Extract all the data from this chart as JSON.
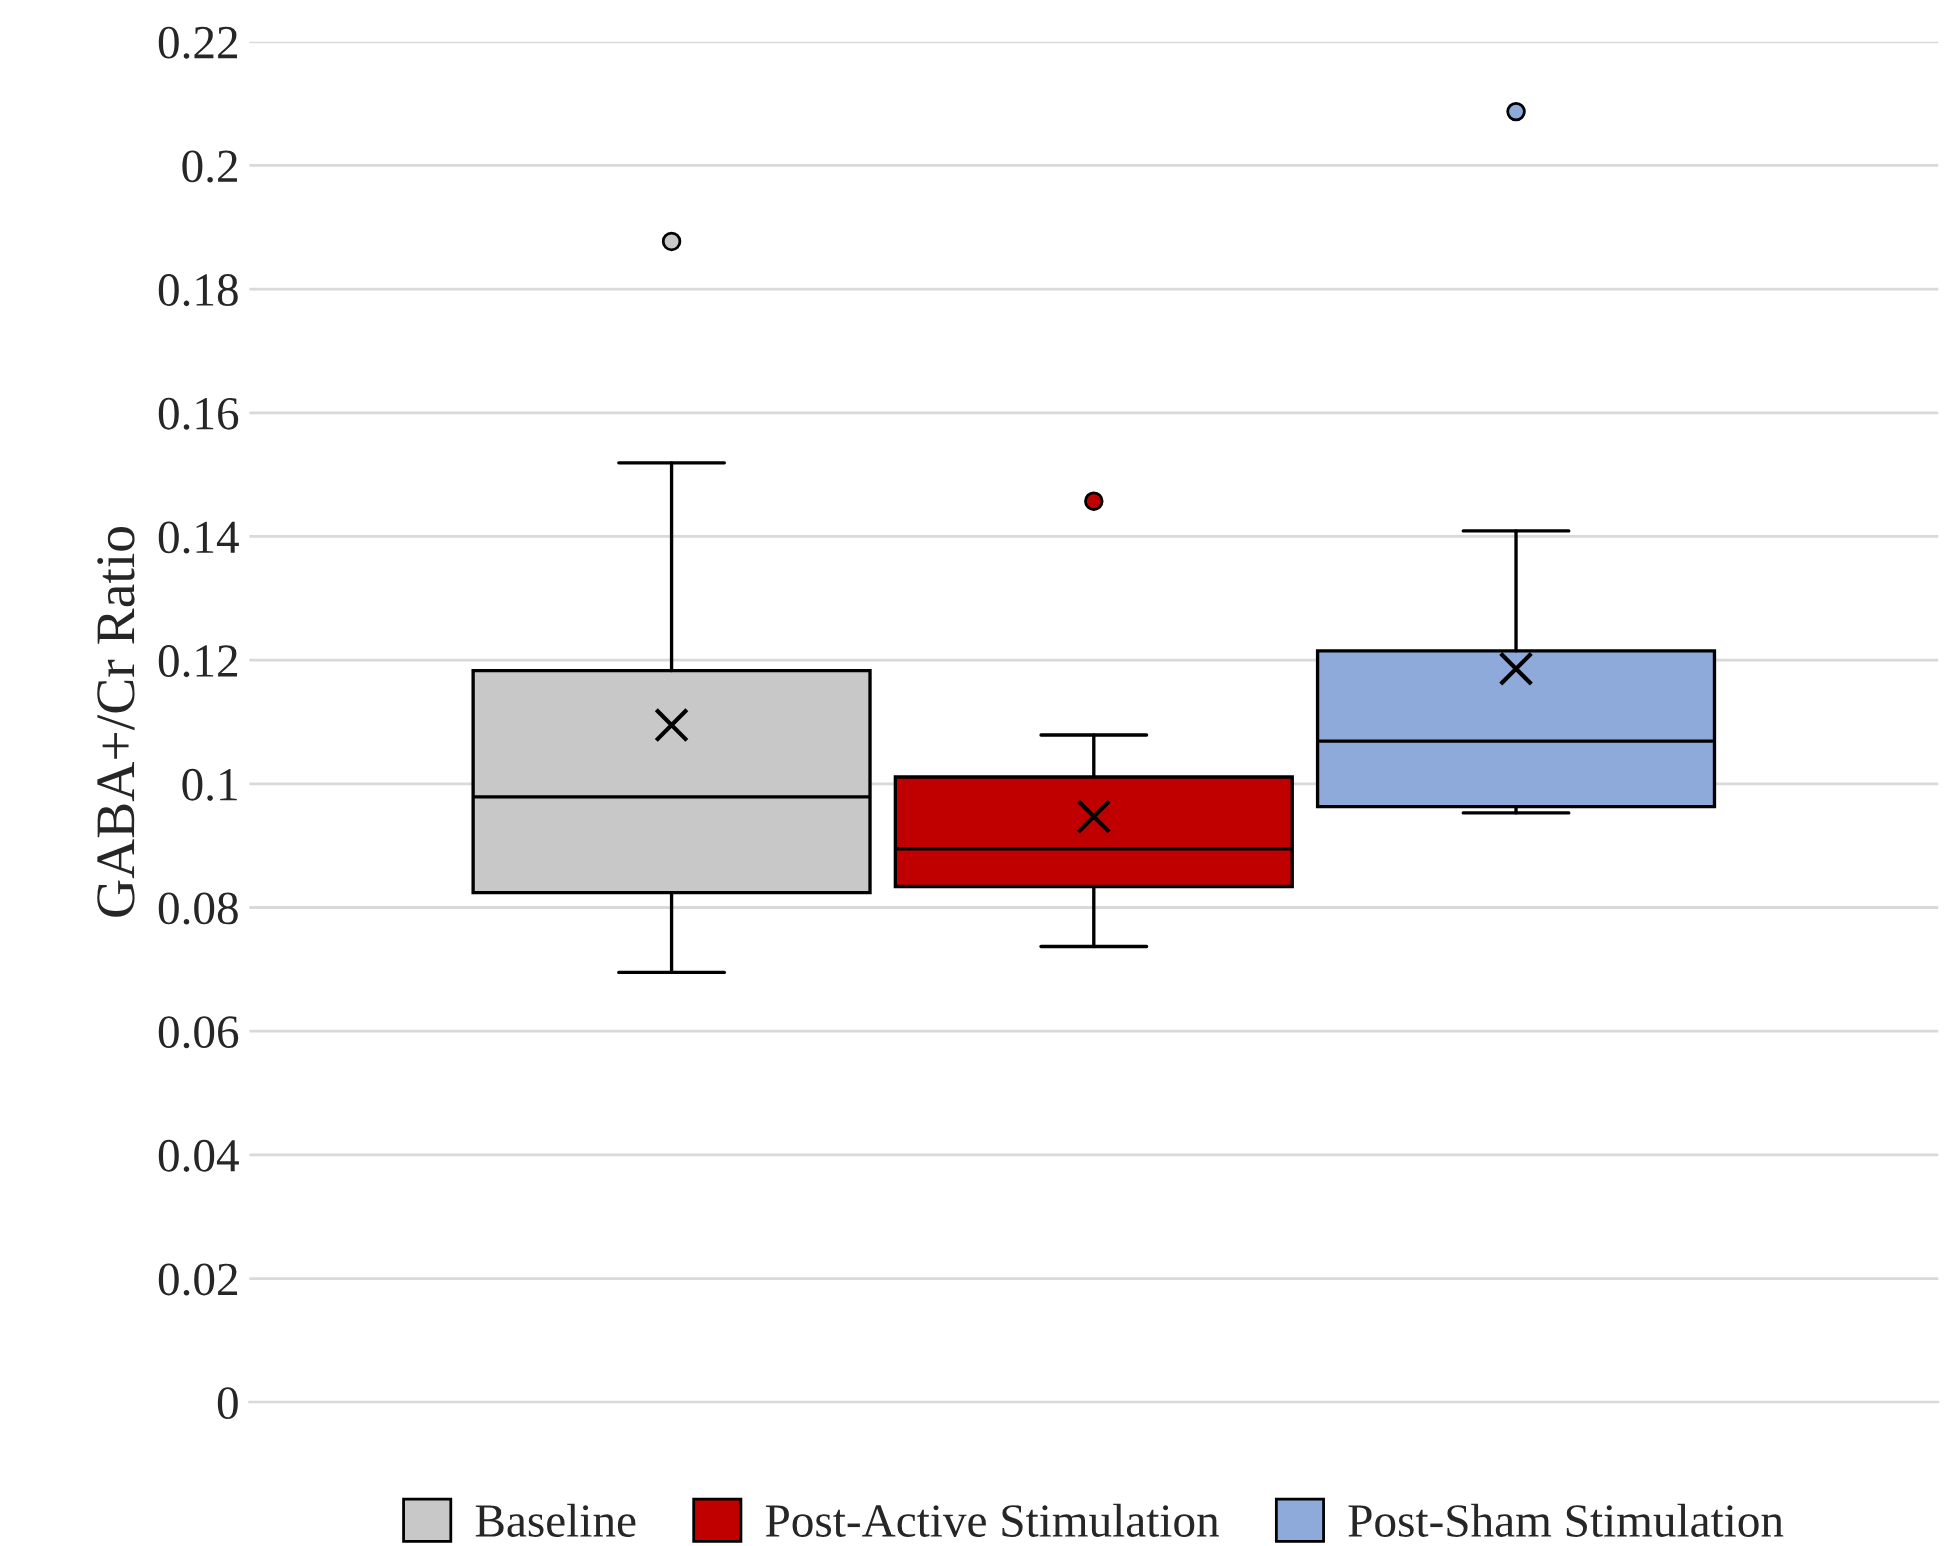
{
  "chart_data": {
    "type": "box",
    "ylabel": "GABA+/Cr Ratio",
    "categories": [
      null
    ],
    "ylim": [
      0,
      0.22
    ],
    "yticks": [
      0,
      0.02,
      0.04,
      0.06,
      0.08,
      0.1,
      0.12,
      0.14,
      0.16,
      0.18,
      0.2,
      0.22
    ],
    "grid": "y",
    "legend": "bottom",
    "series": [
      {
        "name": "Baseline",
        "color": "#c8c8c8",
        "boxes": [
          {
            "low": 0.0695,
            "q1": 0.0824,
            "median": 0.0979,
            "q3": 0.1183,
            "high": 0.1519,
            "mean": 0.1095,
            "outliers": [
              0.1877
            ]
          }
        ]
      },
      {
        "name": "Post-Active Stimulation",
        "color": "#c00000",
        "boxes": [
          {
            "low": 0.0737,
            "q1": 0.0834,
            "median": 0.0895,
            "q3": 0.1011,
            "high": 0.1079,
            "mean": 0.0947,
            "outliers": [
              0.1457
            ]
          }
        ]
      },
      {
        "name": "Post-Sham Stimulation",
        "color": "#8eaadb",
        "boxes": [
          {
            "low": 0.0953,
            "q1": 0.0963,
            "median": 0.1069,
            "q3": 0.1215,
            "high": 0.1409,
            "mean": 0.1186,
            "outliers": [
              0.2087
            ]
          }
        ]
      }
    ]
  }
}
